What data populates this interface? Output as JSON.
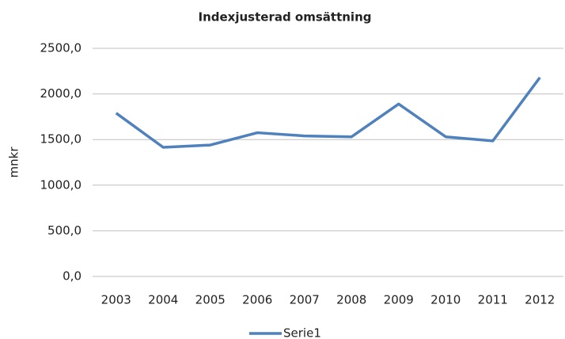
{
  "chart_data": {
    "type": "line",
    "title": "Indexjusterad omsättning",
    "y_label": "mnkr",
    "categories": [
      "2003",
      "2004",
      "2005",
      "2006",
      "2007",
      "2008",
      "2009",
      "2010",
      "2011",
      "2012"
    ],
    "series": [
      {
        "name": "Serie1",
        "color": "#4f81bd",
        "values": [
          1790,
          1415,
          1440,
          1575,
          1540,
          1530,
          1890,
          1530,
          1485,
          2180
        ]
      }
    ],
    "ylim": [
      0,
      2500
    ],
    "yticks": [
      {
        "value": 0,
        "label": "0,0"
      },
      {
        "value": 500,
        "label": "500,0"
      },
      {
        "value": 1000,
        "label": "1000,0"
      },
      {
        "value": 1500,
        "label": "1500,0"
      },
      {
        "value": 2000,
        "label": "2000,0"
      },
      {
        "value": 2500,
        "label": "2500,0"
      }
    ],
    "grid": true,
    "legend": "bottom"
  }
}
